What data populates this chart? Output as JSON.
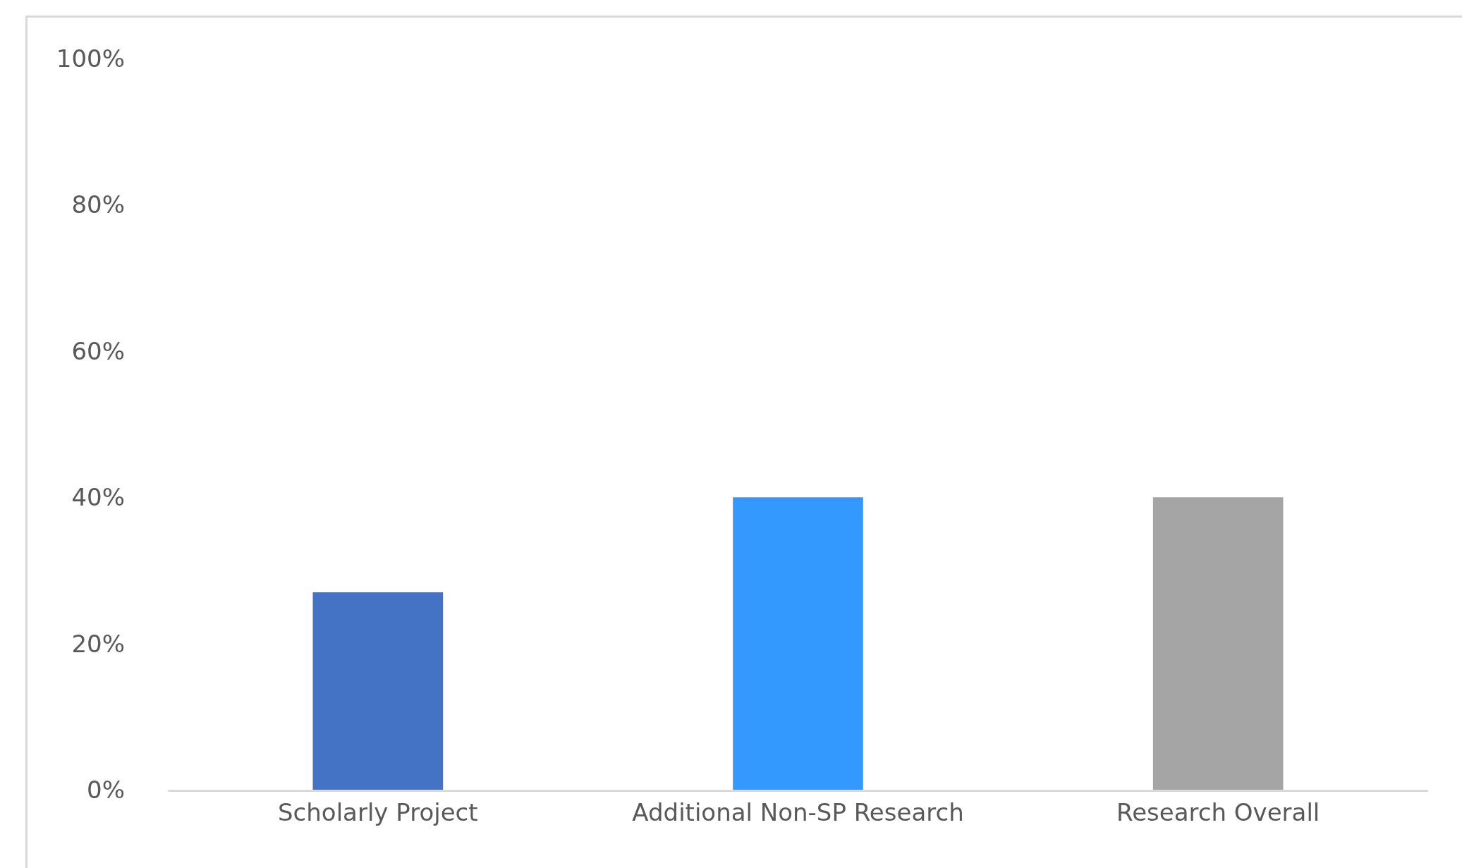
{
  "chart_data": {
    "type": "bar",
    "categories": [
      "Scholarly Project",
      "Additional Non-SP Research",
      "Research Overall"
    ],
    "values": [
      27,
      40,
      40
    ],
    "colors": [
      "#4472c4",
      "#3399ff",
      "#a5a5a5"
    ],
    "ylim": [
      0,
      100
    ],
    "yticks": [
      {
        "value": 0,
        "label": "0%"
      },
      {
        "value": 20,
        "label": "20%"
      },
      {
        "value": 40,
        "label": "40%"
      },
      {
        "value": 60,
        "label": "60%"
      },
      {
        "value": 80,
        "label": "80%"
      },
      {
        "value": 100,
        "label": "100%"
      }
    ],
    "grid": false
  }
}
